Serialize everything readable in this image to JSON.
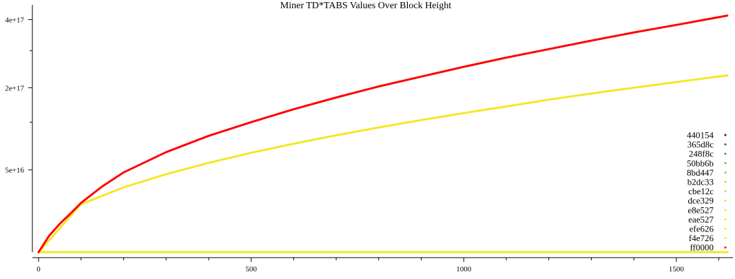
{
  "chart_data": {
    "type": "line",
    "title": "Miner TD*TABS Values Over Block Height",
    "xlabel": "",
    "ylabel": "",
    "xlim": [
      0,
      1625
    ],
    "ylim": [
      0,
      450000000000000000
    ],
    "x_ticks": [
      {
        "value": 0,
        "label": "0"
      },
      {
        "value": 500,
        "label": "500"
      },
      {
        "value": 1000,
        "label": "1000"
      },
      {
        "value": 1500,
        "label": "1500"
      }
    ],
    "x_minor_ticks": [
      100,
      200,
      300,
      400,
      600,
      700,
      800,
      900,
      1100,
      1200,
      1300,
      1400,
      1600
    ],
    "y_ticks": [
      {
        "value": 50000000000000000,
        "label": "5e+16"
      },
      {
        "value": 200000000000000000,
        "label": "2e+17"
      },
      {
        "value": 400000000000000000,
        "label": "4e+17"
      }
    ],
    "y_minor_ticks": [
      125000000000000000,
      300000000000000000
    ],
    "grid": false,
    "legend_position": "right",
    "series": [
      {
        "name": "440154",
        "color": "#440154",
        "x": [
          0,
          1620
        ],
        "y": [
          0,
          0
        ]
      },
      {
        "name": "365d8c",
        "color": "#365d8c",
        "x": [
          0,
          1620
        ],
        "y": [
          0,
          0
        ]
      },
      {
        "name": "248f8c",
        "color": "#248f8c",
        "x": [
          0,
          1620
        ],
        "y": [
          0,
          0
        ]
      },
      {
        "name": "50bb6b",
        "color": "#50bb6b",
        "x": [
          0,
          1620
        ],
        "y": [
          0,
          0
        ]
      },
      {
        "name": "8bd447",
        "color": "#8bd447",
        "x": [
          0,
          1620
        ],
        "y": [
          0,
          0
        ]
      },
      {
        "name": "b2dc33",
        "color": "#b2dc33",
        "x": [
          0,
          1620
        ],
        "y": [
          0,
          0
        ]
      },
      {
        "name": "cbe12c",
        "color": "#cbe12c",
        "x": [
          0,
          1620
        ],
        "y": [
          0,
          0
        ]
      },
      {
        "name": "dce329",
        "color": "#dce329",
        "x": [
          0,
          1620
        ],
        "y": [
          0,
          0
        ]
      },
      {
        "name": "e8e527",
        "color": "#e8e527",
        "x": [
          0,
          1620
        ],
        "y": [
          0,
          0
        ]
      },
      {
        "name": "eae527",
        "color": "#eae527",
        "x": [
          0,
          1620
        ],
        "y": [
          0,
          0
        ]
      },
      {
        "name": "efe626",
        "color": "#efe626",
        "x": [
          0,
          1620
        ],
        "y": [
          0,
          0
        ]
      },
      {
        "name": "f4e726",
        "color": "#f4e726",
        "x": [
          0,
          100,
          200,
          300,
          400,
          500,
          600,
          700,
          800,
          900,
          1000,
          1100,
          1200,
          1300,
          1400,
          1500,
          1620
        ],
        "y": [
          0,
          17000000000000000,
          31000000000000000,
          45000000000000000,
          59000000000000000,
          73000000000000000,
          87000000000000000,
          101000000000000000,
          115000000000000000,
          129000000000000000,
          143000000000000000,
          157000000000000000,
          172000000000000000,
          186000000000000000,
          200000000000000000,
          214000000000000000,
          231000000000000000
        ]
      },
      {
        "name": "ff0000",
        "color": "#ff0000",
        "x": [
          0,
          25,
          50,
          75,
          100,
          150,
          200,
          300,
          400,
          500,
          600,
          700,
          800,
          900,
          1000,
          1100,
          1200,
          1300,
          1400,
          1500,
          1620
        ],
        "y": [
          0,
          2000000000000000,
          6000000000000000,
          11000000000000000,
          18000000000000000,
          32000000000000000,
          47000000000000000,
          74000000000000000,
          100000000000000000,
          125000000000000000,
          151000000000000000,
          177000000000000000,
          203000000000000000,
          228000000000000000,
          254000000000000000,
          280000000000000000,
          305000000000000000,
          331000000000000000,
          357000000000000000,
          382000000000000000,
          414000000000000000
        ]
      }
    ]
  }
}
